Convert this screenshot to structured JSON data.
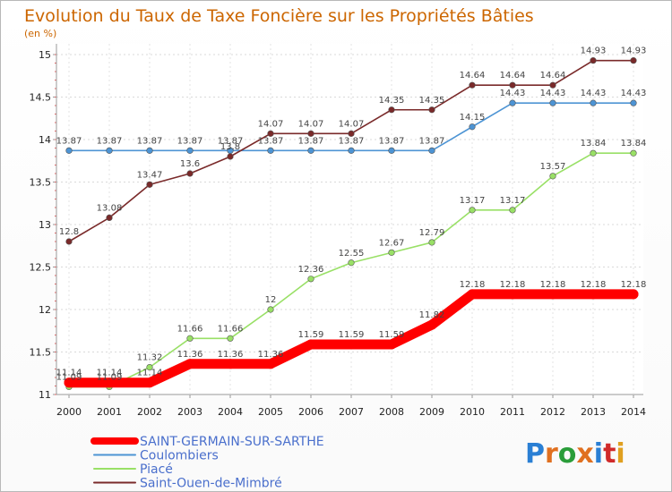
{
  "chart_data": {
    "type": "line",
    "title": "Evolution du Taux de Taxe Foncière sur les Propriétés Bâties",
    "subtitle": "(en %)",
    "x": [
      "2000",
      "2001",
      "2002",
      "2003",
      "2004",
      "2005",
      "2006",
      "2007",
      "2008",
      "2009",
      "2010",
      "2011",
      "2012",
      "2013",
      "2014"
    ],
    "ylim": [
      11,
      15
    ],
    "yticks": [
      "11",
      "11.5",
      "12",
      "12.5",
      "13",
      "13.5",
      "14",
      "14.5",
      "15"
    ],
    "series": [
      {
        "name": "SAINT-GERMAIN-SUR-SARTHE",
        "color": "#ff0000",
        "emphasis": true,
        "values": [
          11.14,
          11.14,
          11.14,
          11.36,
          11.36,
          11.36,
          11.59,
          11.59,
          11.59,
          11.82,
          12.18,
          12.18,
          12.18,
          12.18,
          12.18
        ],
        "labels": [
          "11.14",
          "11.14",
          "11.14",
          "11.36",
          "11.36",
          "11.36",
          "11.59",
          "11.59",
          "11.59",
          "11.82",
          "12.18",
          "12.18",
          "12.18",
          "12.18",
          "12.18"
        ]
      },
      {
        "name": "Coulombiers",
        "color": "#4d94d4",
        "emphasis": false,
        "values": [
          13.87,
          13.87,
          13.87,
          13.87,
          13.87,
          13.87,
          13.87,
          13.87,
          13.87,
          13.87,
          14.15,
          14.43,
          14.43,
          14.43,
          14.43
        ],
        "labels": [
          "13.87",
          "13.87",
          "13.87",
          "13.87",
          "13.87",
          "13.87",
          "13.87",
          "13.87",
          "13.87",
          "13.87",
          "14.15",
          "14.43",
          "14.43",
          "14.43",
          "14.43"
        ]
      },
      {
        "name": "Piacé",
        "color": "#99e066",
        "emphasis": false,
        "values": [
          11.09,
          11.09,
          11.32,
          11.66,
          11.66,
          12,
          12.36,
          12.55,
          12.67,
          12.79,
          13.17,
          13.17,
          13.57,
          13.84,
          13.84
        ],
        "labels": [
          "11.09",
          "11.09",
          "11.32",
          "11.66",
          "11.66",
          "12",
          "12.36",
          "12.55",
          "12.67",
          "12.79",
          "13.17",
          "13.17",
          "13.57",
          "13.84",
          "13.84"
        ]
      },
      {
        "name": "Saint-Ouen-de-Mimbré",
        "color": "#7a2a2a",
        "emphasis": false,
        "values": [
          12.8,
          13.08,
          13.47,
          13.6,
          13.8,
          14.07,
          14.07,
          14.07,
          14.35,
          14.35,
          14.64,
          14.64,
          14.64,
          14.93,
          14.93
        ],
        "labels": [
          "12.8",
          "13.08",
          "13.47",
          "13.6",
          "13.8",
          "14.07",
          "14.07",
          "14.07",
          "14.35",
          "14.35",
          "14.64",
          "14.64",
          "14.64",
          "14.93",
          "14.93"
        ]
      }
    ],
    "legend_position": "bottom-left"
  },
  "logo": {
    "text": "Proxiti",
    "letters": [
      "P",
      "r",
      "o",
      "x",
      "i",
      "t",
      "i"
    ],
    "colors": [
      "#2a7fd4",
      "#e07020",
      "#2a9d3a",
      "#e07020",
      "#2a7fd4",
      "#d02a2a",
      "#e0a020"
    ]
  }
}
